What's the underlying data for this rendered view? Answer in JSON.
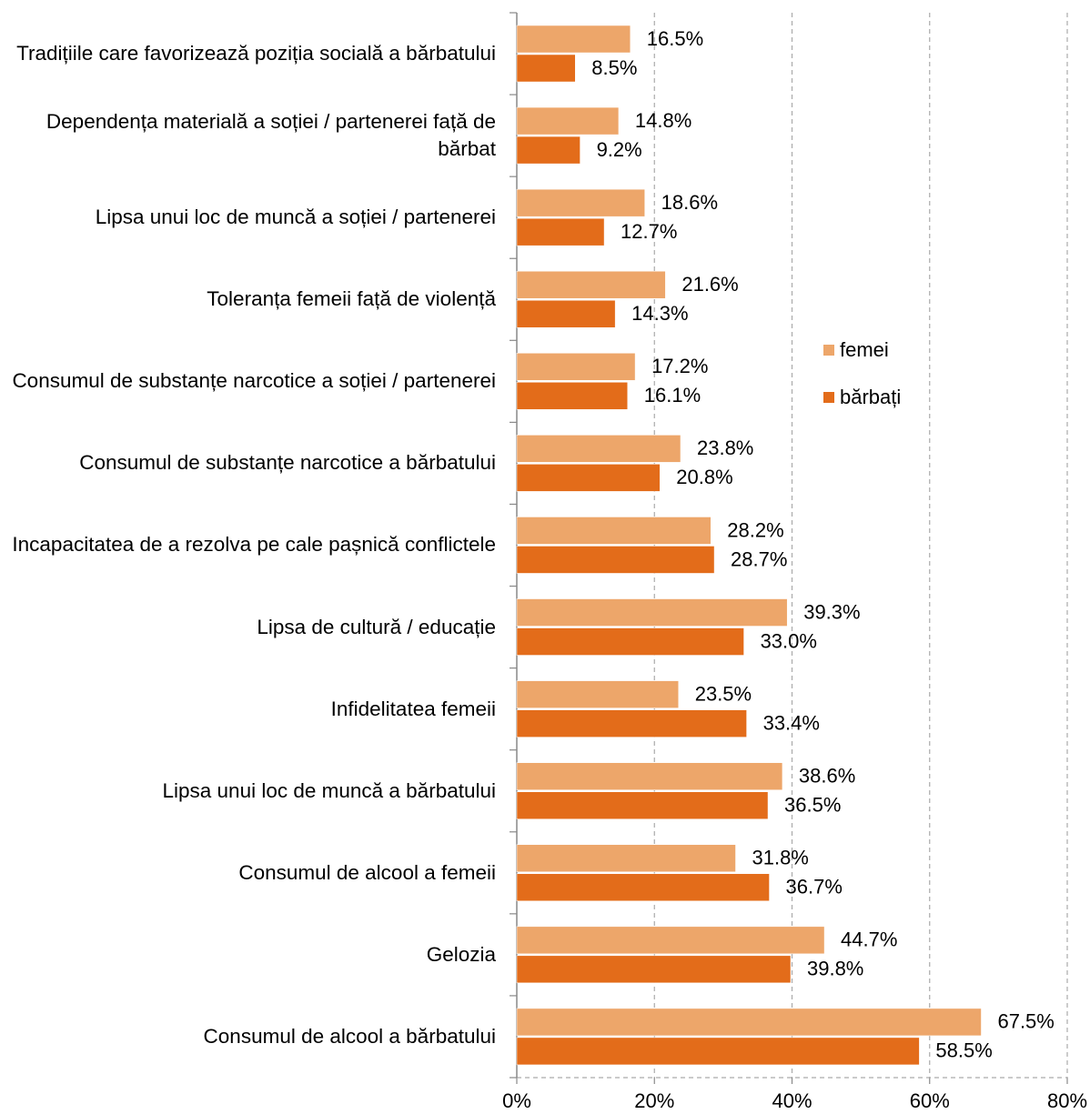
{
  "chart_data": {
    "type": "barh",
    "categories": [
      "Tradițiile care favorizează  poziția socială a bărbatului",
      "Dependența materială a soției / partenerei față de bărbat",
      "Lipsa unui loc de muncă a soției / partenerei",
      "Toleranța femeii față de violență",
      "Consumul de substanțe narcotice a soției / partenerei",
      "Consumul de substanțe narcotice a bărbatului",
      "Incapacitatea de a rezolva pe cale pașnică conflictele",
      "Lipsa de cultură / educație",
      "Infidelitatea femeii",
      "Lipsa unui loc de muncă a bărbatului",
      "Consumul de alcool a femeii",
      "Gelozia",
      "Consumul de alcool a bărbatului"
    ],
    "series": [
      {
        "name": "femei",
        "color": "#eda66a",
        "values": [
          16.5,
          14.8,
          18.6,
          21.6,
          17.2,
          23.8,
          28.2,
          39.3,
          23.5,
          38.6,
          31.8,
          44.7,
          67.5
        ],
        "value_labels": [
          "16.5%",
          "14.8%",
          "18.6%",
          "21.6%",
          "17.2%",
          "23.8%",
          "28.2%",
          "39.3%",
          "23.5%",
          "38.6%",
          "31.8%",
          "44.7%",
          "67.5%"
        ]
      },
      {
        "name": "bărbați",
        "color": "#e36c1a",
        "values": [
          8.5,
          9.2,
          12.7,
          14.3,
          16.1,
          20.8,
          28.7,
          33.0,
          33.4,
          36.5,
          36.7,
          39.8,
          58.5
        ],
        "value_labels": [
          "8.5%",
          "9.2%",
          "12.7%",
          "14.3%",
          "16.1%",
          "20.8%",
          "28.7%",
          "33.0%",
          "33.4%",
          "36.5%",
          "36.7%",
          "39.8%",
          "58.5%"
        ]
      }
    ],
    "xlim": [
      0,
      80
    ],
    "xticks": [
      {
        "value": 0,
        "label": "0%"
      },
      {
        "value": 20,
        "label": "20%"
      },
      {
        "value": 40,
        "label": "40%"
      },
      {
        "value": 60,
        "label": "60%"
      },
      {
        "value": 80,
        "label": "80%"
      }
    ],
    "grid": true,
    "legend": "right"
  }
}
